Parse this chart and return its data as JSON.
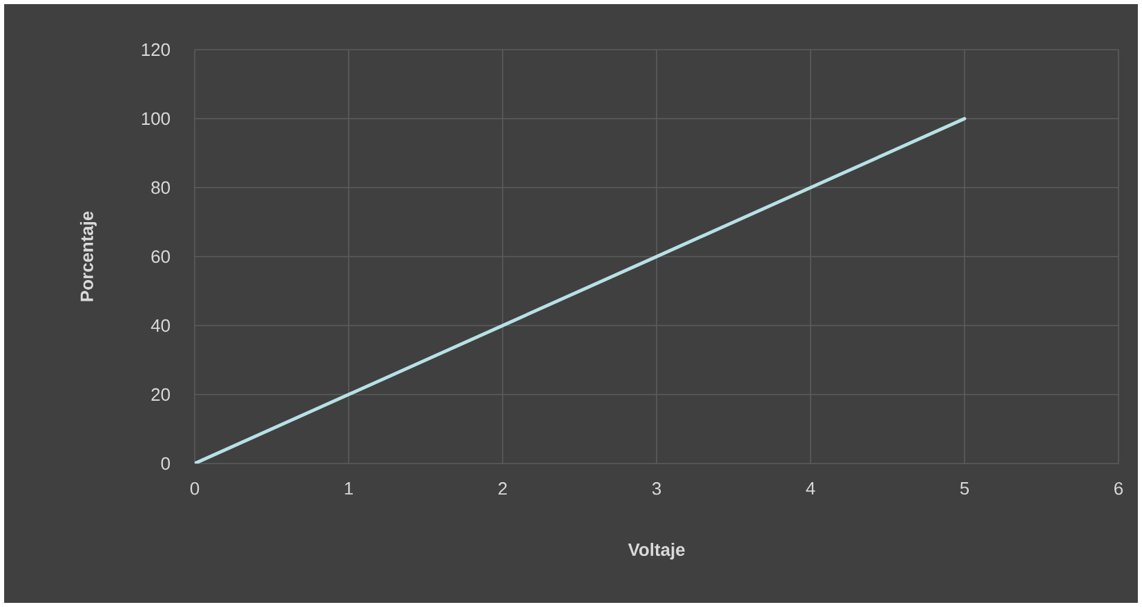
{
  "chart_data": {
    "type": "line",
    "xlabel": "Voltaje",
    "ylabel": "Porcentaje",
    "x": [
      0,
      1,
      2,
      3,
      4,
      5
    ],
    "series": [
      {
        "color": "#b7e1e6",
        "values": [
          0,
          20,
          40,
          60,
          80,
          100
        ]
      }
    ],
    "xlim": [
      0,
      6
    ],
    "ylim": [
      0,
      120
    ],
    "xticks": [
      0,
      1,
      2,
      3,
      4,
      5,
      6
    ],
    "yticks": [
      0,
      20,
      40,
      60,
      80,
      100,
      120
    ],
    "grid": true
  }
}
